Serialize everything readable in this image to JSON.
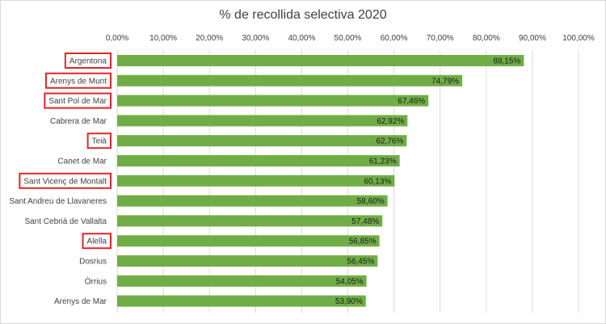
{
  "chart_data": {
    "type": "bar",
    "orientation": "horizontal",
    "title": "% de recollida selectiva 2020",
    "categories": [
      "Argentona",
      "Arenys de Munt",
      "Sant Pol de Mar",
      "Cabrera de Mar",
      "Teià",
      "Canet de Mar",
      "Sant Vicenç de Montalt",
      "Sant Andreu de Llavaneres",
      "Sant Cebrià de Vallalta",
      "Alella",
      "Dosrius",
      "Òrrius",
      "Arenys de Mar"
    ],
    "values": [
      88.15,
      74.79,
      67.46,
      62.92,
      62.76,
      61.23,
      60.13,
      58.6,
      57.48,
      56.85,
      56.45,
      54.05,
      53.9
    ],
    "data_labels": [
      "88,15%",
      "74,79%",
      "67,46%",
      "62,92%",
      "62,76%",
      "61,23%",
      "60,13%",
      "58,60%",
      "57,48%",
      "56,85%",
      "56,45%",
      "54,05%",
      "53,90%"
    ],
    "highlighted": [
      "Argentona",
      "Arenys de Munt",
      "Sant Pol de Mar",
      "Teià",
      "Sant Vicenç de Montalt",
      "Alella"
    ],
    "xlim": [
      0,
      100
    ],
    "x_ticks": [
      "0,00%",
      "10,00%",
      "20,00%",
      "30,00%",
      "40,00%",
      "50,00%",
      "60,00%",
      "70,00%",
      "80,00%",
      "90,00%",
      "100,00%"
    ],
    "axis_position": "top",
    "grid": true,
    "colors": {
      "bar": "#70ad47",
      "grid": "#d9d9d9",
      "highlight_box": "#e0262c"
    }
  }
}
